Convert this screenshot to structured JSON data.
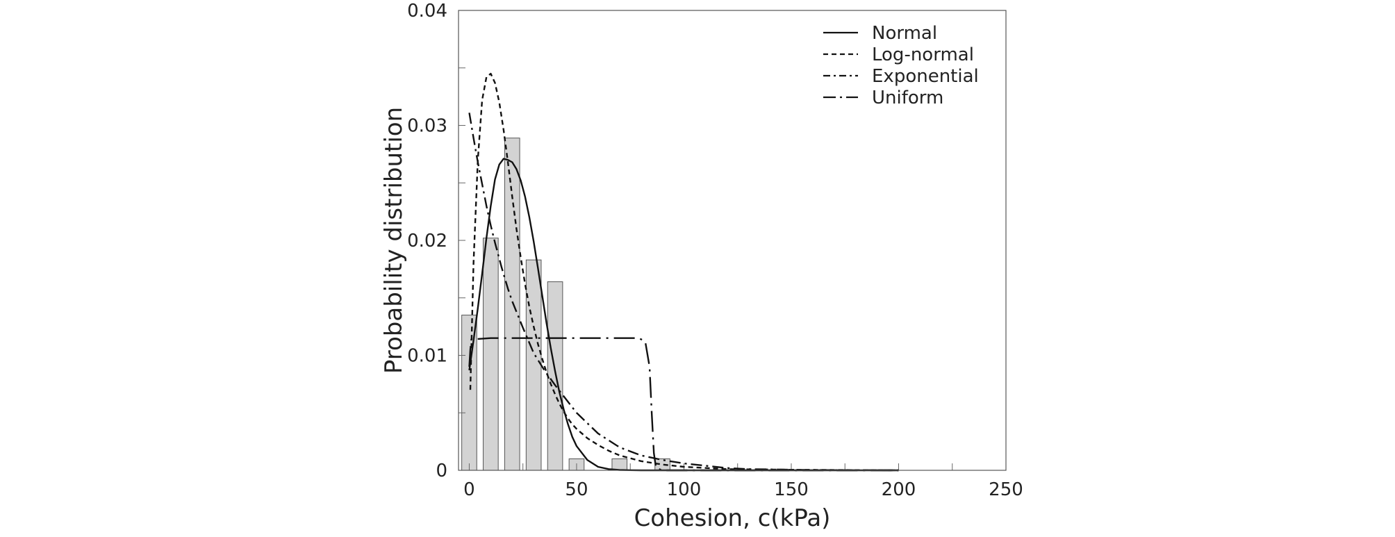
{
  "chart_data": {
    "type": "bar",
    "title": "",
    "xlabel": "Cohesion, c(kPa)",
    "ylabel": "Probability distribution",
    "xlim": [
      -5,
      250
    ],
    "ylim": [
      0,
      0.04
    ],
    "xticks": [
      0,
      50,
      100,
      150,
      200,
      250
    ],
    "yticks": [
      0,
      0.01,
      0.02,
      0.03,
      0.04
    ],
    "xtick_labels": [
      "0",
      "50",
      "100",
      "150",
      "200",
      "250"
    ],
    "ytick_labels": [
      "0",
      "0.01",
      "0.02",
      "0.03",
      "0.04"
    ],
    "legend_position": "top-right",
    "grid": false,
    "histogram": {
      "bin_width": 10,
      "bars": [
        {
          "x": 0,
          "value": 0.0135
        },
        {
          "x": 10,
          "value": 0.0202
        },
        {
          "x": 20,
          "value": 0.0289
        },
        {
          "x": 30,
          "value": 0.0183
        },
        {
          "x": 40,
          "value": 0.0164
        },
        {
          "x": 50,
          "value": 0.001
        },
        {
          "x": 70,
          "value": 0.001
        },
        {
          "x": 90,
          "value": 0.001
        }
      ],
      "color": "#d3d3d3"
    },
    "series": [
      {
        "name": "Normal",
        "style": "solid",
        "x": [
          0,
          2,
          4,
          6,
          8,
          10,
          12,
          14,
          16,
          18,
          20,
          22,
          24,
          26,
          28,
          30,
          32,
          34,
          36,
          38,
          40,
          42,
          44,
          46,
          48,
          50,
          55,
          60,
          65,
          70,
          75,
          80,
          85,
          90,
          100,
          120,
          150,
          200
        ],
        "y": [
          0.0087,
          0.0113,
          0.0141,
          0.0171,
          0.0202,
          0.023,
          0.0253,
          0.0266,
          0.0271,
          0.027,
          0.0268,
          0.0262,
          0.0252,
          0.0238,
          0.022,
          0.0199,
          0.0176,
          0.0152,
          0.0128,
          0.0106,
          0.0086,
          0.0068,
          0.0053,
          0.004,
          0.0029,
          0.0021,
          0.0009,
          0.0003,
          0.0001,
          3e-05,
          1e-05,
          0.0,
          0.0,
          0.0,
          0.0,
          0.0,
          0.0,
          0.0
        ]
      },
      {
        "name": "Log-normal",
        "style": "short-dash",
        "x": [
          0.5,
          2,
          4,
          6,
          8,
          10,
          12,
          14,
          16,
          18,
          20,
          22,
          24,
          26,
          28,
          30,
          32,
          34,
          36,
          38,
          40,
          42,
          44,
          46,
          48,
          50,
          55,
          60,
          65,
          70,
          80,
          90,
          100,
          120,
          150,
          200
        ],
        "y": [
          0.007,
          0.018,
          0.027,
          0.0322,
          0.0342,
          0.0345,
          0.0337,
          0.032,
          0.0296,
          0.0268,
          0.0238,
          0.021,
          0.0185,
          0.0162,
          0.0142,
          0.0125,
          0.011,
          0.0097,
          0.0085,
          0.0075,
          0.0066,
          0.0058,
          0.0051,
          0.0045,
          0.004,
          0.0036,
          0.0028,
          0.0022,
          0.0017,
          0.0013,
          0.0008,
          0.0005,
          0.0003,
          0.0001,
          5e-05,
          0.0
        ]
      },
      {
        "name": "Exponential",
        "style": "dash-dot",
        "x": [
          0,
          2,
          4,
          6,
          8,
          10,
          12,
          15,
          18,
          20,
          25,
          30,
          35,
          40,
          45,
          50,
          60,
          70,
          80,
          90,
          100,
          110,
          120,
          130,
          140,
          150,
          160,
          170,
          180,
          190,
          200
        ],
        "y": [
          0.0311,
          0.0289,
          0.0268,
          0.0249,
          0.023,
          0.0213,
          0.0198,
          0.0177,
          0.0158,
          0.0147,
          0.0124,
          0.0102,
          0.0087,
          0.0074,
          0.0062,
          0.005,
          0.0032,
          0.002,
          0.0013,
          0.0009,
          0.0006,
          0.0004,
          0.0002,
          0.0001,
          8e-05,
          5e-05,
          3e-05,
          2e-05,
          1e-05,
          1e-05,
          0.0
        ]
      },
      {
        "name": "Uniform",
        "style": "long-dash-dot",
        "x": [
          0,
          0.5,
          1,
          2,
          10,
          20,
          30,
          40,
          50,
          60,
          70,
          79,
          82,
          84,
          85,
          86,
          87,
          90,
          100,
          150,
          200
        ],
        "y": [
          0.009,
          0.0105,
          0.0114,
          0.0114,
          0.0115,
          0.0115,
          0.0115,
          0.0115,
          0.0115,
          0.0115,
          0.0115,
          0.0115,
          0.0112,
          0.009,
          0.005,
          0.0015,
          0.0002,
          0.0,
          0.0,
          0.0,
          0.0
        ]
      }
    ]
  }
}
